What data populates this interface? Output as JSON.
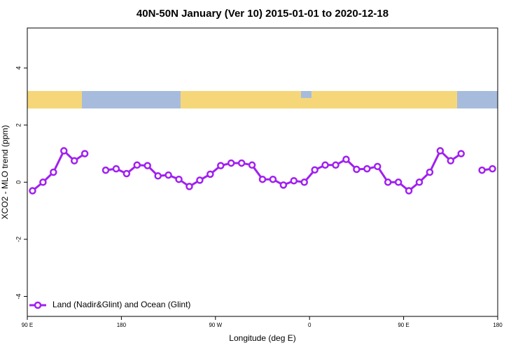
{
  "chart_data": {
    "type": "line",
    "title": "40N-50N January (Ver 10)   2015-01-01 to 2020-12-18",
    "x_label": "Longitude (deg E)",
    "y_label": "XCO2 - MLO trend (ppm)",
    "x": [
      95,
      105,
      115,
      125,
      135,
      145,
      155,
      165,
      175,
      185,
      195,
      205,
      215,
      225,
      235,
      245,
      255,
      265,
      275,
      285,
      295,
      305,
      315,
      325,
      335,
      345,
      355,
      365,
      375,
      385,
      395,
      405,
      415,
      425,
      435,
      445,
      455,
      465,
      475,
      485,
      495,
      505,
      515,
      525,
      535
    ],
    "series": [
      {
        "name": "Land (Nadir&Glint) and Ocean (Glint)",
        "color": "#a020f0",
        "values": [
          -0.3,
          0.0,
          0.35,
          1.1,
          0.75,
          1.0,
          null,
          0.42,
          0.47,
          0.3,
          0.6,
          0.58,
          0.22,
          0.25,
          0.1,
          -0.15,
          0.07,
          0.28,
          0.58,
          0.67,
          0.67,
          0.6,
          0.1,
          0.1,
          -0.1,
          0.05,
          0.0,
          0.43,
          0.6,
          0.6,
          0.8,
          0.45,
          0.47,
          0.55,
          0.0,
          0.0,
          -0.3,
          0.0,
          0.35,
          1.1,
          0.75,
          1.0,
          null,
          0.42,
          0.47
        ]
      }
    ],
    "xlim": [
      90,
      540
    ],
    "xticks": [
      {
        "value": 90,
        "label": "90 E"
      },
      180,
      {
        "value": 270,
        "label": "90 W"
      },
      {
        "value": 360,
        "label": "0"
      },
      {
        "value": 450,
        "label": "90 E"
      },
      {
        "value": 540,
        "label": "180"
      }
    ],
    "ylim": [
      -4.7,
      5.4
    ],
    "yticks": [
      -4,
      -2,
      0,
      2,
      4
    ],
    "legend": "bottom-left"
  }
}
